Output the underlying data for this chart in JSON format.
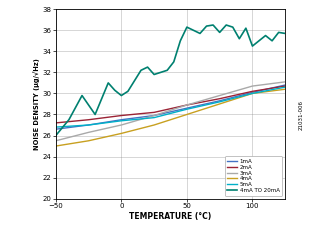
{
  "title": "",
  "xlabel": "TEMPERATURE (°C)",
  "ylabel": "NOISE DENSITY (µg/√Hz)",
  "xlim": [
    -50,
    125
  ],
  "ylim": [
    20,
    38
  ],
  "xticks": [
    -50,
    0,
    50,
    100
  ],
  "yticks": [
    20,
    22,
    24,
    26,
    28,
    30,
    32,
    34,
    36,
    38
  ],
  "series": {
    "1mA": {
      "color": "#4472C4",
      "x": [
        -50,
        -25,
        0,
        25,
        50,
        75,
        100,
        125
      ],
      "y": [
        26.6,
        27.0,
        27.5,
        27.9,
        28.6,
        29.3,
        30.1,
        30.8
      ]
    },
    "2mA": {
      "color": "#9B2335",
      "x": [
        -50,
        -25,
        0,
        25,
        50,
        75,
        100,
        125
      ],
      "y": [
        27.2,
        27.5,
        27.9,
        28.2,
        28.9,
        29.5,
        30.2,
        30.7
      ]
    },
    "3mA": {
      "color": "#A9A9A9",
      "x": [
        -50,
        -25,
        0,
        25,
        50,
        75,
        100,
        125
      ],
      "y": [
        25.5,
        26.3,
        27.0,
        27.9,
        28.9,
        29.8,
        30.7,
        31.1
      ]
    },
    "4mA": {
      "color": "#C8A020",
      "x": [
        -50,
        -25,
        0,
        25,
        50,
        75,
        100,
        125
      ],
      "y": [
        25.0,
        25.5,
        26.2,
        27.0,
        28.0,
        29.0,
        30.0,
        30.4
      ]
    },
    "5mA": {
      "color": "#00B0C8",
      "x": [
        -50,
        -25,
        0,
        25,
        50,
        75,
        100,
        125
      ],
      "y": [
        26.8,
        27.0,
        27.4,
        27.7,
        28.5,
        29.2,
        30.0,
        30.6
      ]
    },
    "4mA TO 20mA": {
      "color": "#008070",
      "x": [
        -50,
        -40,
        -30,
        -20,
        -10,
        -5,
        0,
        5,
        10,
        15,
        20,
        25,
        30,
        35,
        40,
        45,
        50,
        55,
        60,
        65,
        70,
        75,
        80,
        85,
        90,
        95,
        100,
        105,
        110,
        115,
        120,
        125
      ],
      "y": [
        26.0,
        27.5,
        29.8,
        28.0,
        31.0,
        30.3,
        29.8,
        30.2,
        31.2,
        32.2,
        32.5,
        31.8,
        32.0,
        32.2,
        33.0,
        35.0,
        36.3,
        36.0,
        35.7,
        36.4,
        36.5,
        35.8,
        36.5,
        36.3,
        35.2,
        36.2,
        34.5,
        35.0,
        35.5,
        35.0,
        35.8,
        35.7
      ]
    }
  },
  "legend_order": [
    "1mA",
    "2mA",
    "3mA",
    "4mA",
    "5mA",
    "4mA TO 20mA"
  ],
  "side_label": "21031-006",
  "bg_color": "#ffffff",
  "grid_color": "#888888"
}
